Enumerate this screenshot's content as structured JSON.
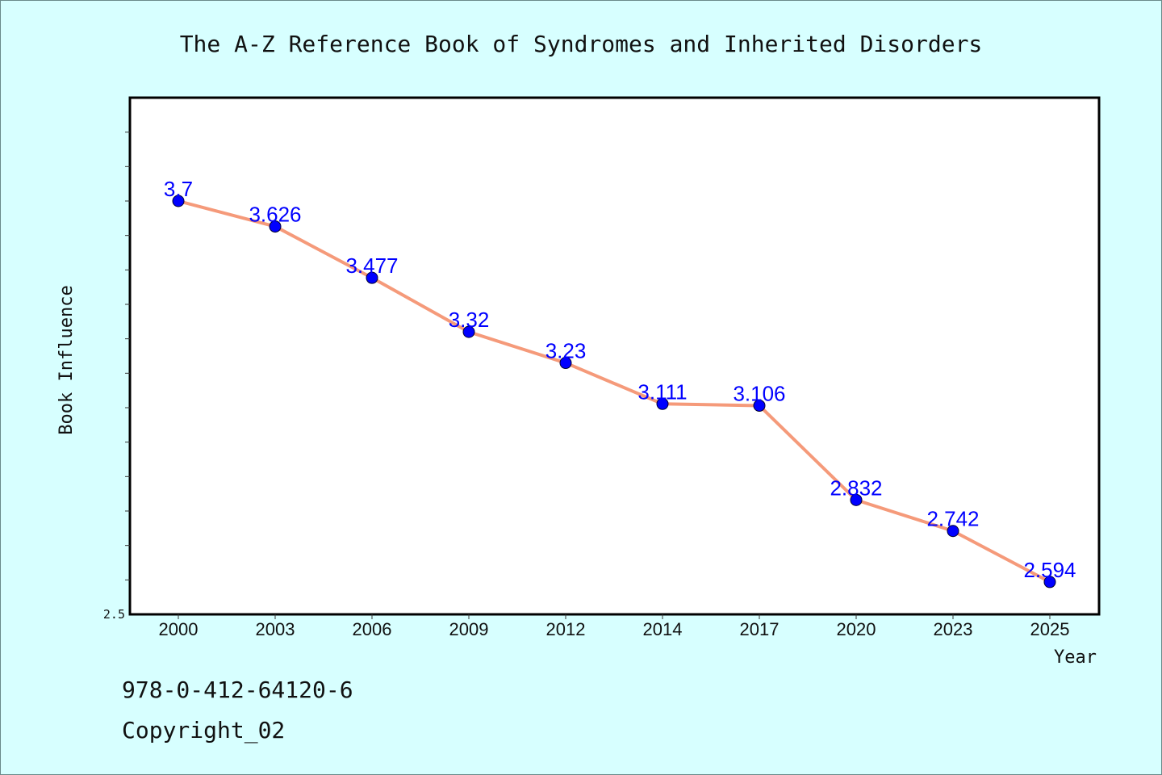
{
  "chart_data": {
    "type": "line",
    "title": "The A-Z Reference Book of Syndromes and Inherited Disorders",
    "xlabel": "Year",
    "ylabel": "Book Influence",
    "categories": [
      "2000",
      "2003",
      "2006",
      "2009",
      "2012",
      "2014",
      "2017",
      "2020",
      "2023",
      "2025"
    ],
    "series": [
      {
        "values": [
          3.7,
          3.626,
          3.477,
          3.32,
          3.23,
          3.111,
          3.106,
          2.832,
          2.742,
          2.594
        ]
      }
    ],
    "data_labels": [
      "3.7",
      "3.626",
      "3.477",
      "3.32",
      "3.23",
      "3.111",
      "3.106",
      "2.832",
      "2.742",
      "2.594"
    ],
    "ylim": [
      2.5,
      4.0
    ],
    "y_tick_labels": [
      "2.5"
    ],
    "grid": false,
    "line_color": "#f59a7a",
    "marker_color": "#0000ff",
    "label_color": "#0000ff",
    "background_color": "#d7ffff",
    "plot_background_color": "#ffffff"
  },
  "footer": {
    "isbn": "978-0-412-64120-6",
    "copyright": "Copyright_02"
  }
}
